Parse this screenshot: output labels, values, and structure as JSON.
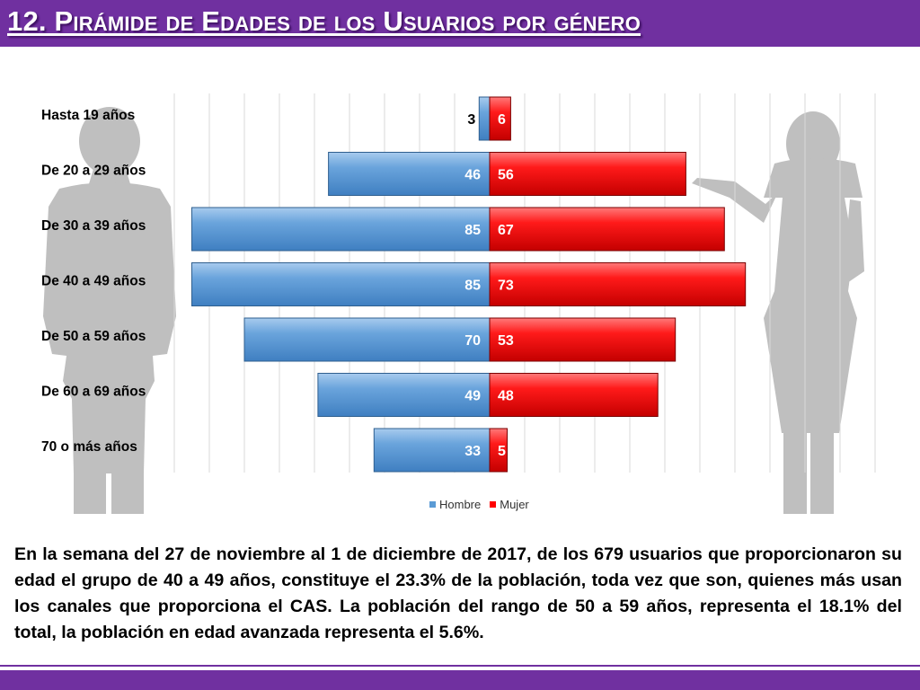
{
  "header": {
    "title": "12. Pirámide de Edades de los Usuarios por género"
  },
  "chart_data": {
    "type": "bar",
    "orientation": "horizontal",
    "layout": "population-pyramid",
    "title": "",
    "categories": [
      "Hasta 19 años",
      "De 20 a 29 años",
      "De 30 a 39 años",
      "De 40 a 49 años",
      "De 50 a 59 años",
      "De 60 a 69 años",
      "70 o más años"
    ],
    "series": [
      {
        "name": "Hombre",
        "color": "#5b9bd5",
        "values": [
          3,
          46,
          85,
          85,
          70,
          49,
          33
        ]
      },
      {
        "name": "Mujer",
        "color": "#ff0000",
        "values": [
          6,
          56,
          67,
          73,
          53,
          48,
          5
        ]
      }
    ],
    "grid": true,
    "legend_position": "bottom",
    "data_labels": true
  },
  "caption": {
    "text": "En la semana del 27 de noviembre al 1 de diciembre de 2017, de los 679 usuarios que proporcionaron su edad el grupo de 40 a 49 años, constituye el 23.3% de la población, toda vez que son, quienes más usan los canales que proporciona el CAS. La población del rango de 50 a 59 años, representa el 18.1% del total, la población en edad avanzada representa el 5.6%."
  },
  "colors": {
    "header": "#7030a0",
    "silhouette": "#bfbfbf",
    "gridline": "#d9d9d9"
  },
  "icons": {
    "left": "man-silhouette-icon",
    "right": "woman-silhouette-icon"
  }
}
